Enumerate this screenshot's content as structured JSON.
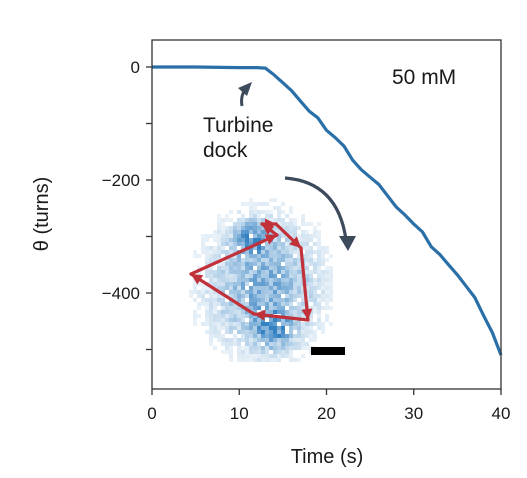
{
  "chart_data": {
    "type": "line",
    "title": "",
    "xlabel": "Time (s)",
    "ylabel": "θ (turns)",
    "xlim": [
      0,
      40
    ],
    "ylim": [
      -560,
      50
    ],
    "xticks": [
      0,
      10,
      20,
      30,
      40
    ],
    "yticks_labeled": [
      0,
      -200,
      -400
    ],
    "yticks_minor": [
      -100,
      -300,
      -500
    ],
    "grid": false,
    "series": [
      {
        "color": "#2a6fa8",
        "x": [
          0,
          5,
          10,
          12,
          13,
          14,
          15,
          16,
          17,
          18,
          19,
          20,
          21,
          22,
          23,
          24,
          25,
          26,
          27,
          28,
          29,
          30,
          31,
          32,
          33,
          34,
          35,
          36,
          37,
          38,
          39,
          40
        ],
        "y": [
          0,
          0,
          -1,
          -1,
          -2,
          -14,
          -28,
          -42,
          -60,
          -78,
          -90,
          -112,
          -125,
          -140,
          -165,
          -182,
          -195,
          -208,
          -228,
          -248,
          -262,
          -278,
          -292,
          -318,
          -332,
          -350,
          -368,
          -388,
          -408,
          -440,
          -470,
          -510
        ]
      }
    ],
    "annotations": [
      {
        "text_lines": [
          "Turbine",
          "dock"
        ],
        "arrow_target": [
          10.5,
          -40
        ]
      },
      {
        "text": "50 mM"
      }
    ],
    "inset": {
      "description": "heatmap of rotor positions with trajectory",
      "heatmap_color": "#2a7bbf",
      "trajectory_color": "#c0313a",
      "scale_bar_color": "#000000"
    }
  }
}
